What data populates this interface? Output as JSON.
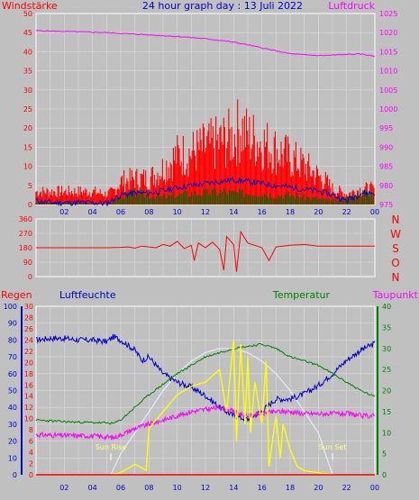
{
  "colors": {
    "background": "#c0c0c0",
    "plot_bg": "#c0c0c0",
    "grid": "#dcdcdc",
    "title": "#0000cc",
    "wind": "#ff0000",
    "gust_dark": "#006400",
    "blue": "#0000cc",
    "pressure": "#ff00ff",
    "direction": "#ff0000",
    "temperature": "#008000",
    "humidity": "#0000cc",
    "dewpoint": "#ff00ff",
    "radiation": "#ffff00",
    "solar_max": "#e8e8ff",
    "rain": "#ff0000",
    "sun_markers": "#ffff80"
  },
  "chart_data": [
    {
      "type": "line",
      "title": "24 hour graph day : 13 Juli 2022",
      "ylabel_left": "Windstärke",
      "ylabel_right": "Luftdruck",
      "xticks": [
        "02",
        "04",
        "06",
        "08",
        "10",
        "12",
        "14",
        "16",
        "18",
        "20",
        "22",
        "00"
      ],
      "left_ticks": [
        0,
        5,
        10,
        15,
        20,
        25,
        30,
        35,
        40,
        45,
        50
      ],
      "right_ticks": [
        975,
        980,
        985,
        990,
        995,
        1000,
        1005,
        1010,
        1015,
        1020,
        1025
      ],
      "ylim_left": [
        0,
        50
      ],
      "ylim_right": [
        975,
        1025
      ],
      "series": {
        "pressure": {
          "x": [
            0,
            1,
            2,
            3,
            4,
            5,
            6,
            7,
            8,
            9,
            10,
            11,
            12,
            13,
            14,
            15,
            16,
            17,
            18,
            19,
            20,
            21,
            22,
            23,
            24
          ],
          "values": [
            1020.5,
            1020.4,
            1020.3,
            1020.2,
            1020.1,
            1020.0,
            1019.8,
            1019.6,
            1019.4,
            1019.2,
            1019.0,
            1018.7,
            1018.4,
            1018.0,
            1017.5,
            1016.8,
            1016.0,
            1015.2,
            1014.5,
            1014.2,
            1014.0,
            1014.1,
            1014.3,
            1014.4,
            1013.8
          ]
        },
        "wind_gust_envelope": {
          "x": [
            0,
            1,
            2,
            3,
            4,
            5,
            5.5,
            6,
            7,
            8,
            9,
            10,
            11,
            12,
            13,
            14,
            14.5,
            15,
            16,
            17,
            18,
            19,
            20,
            20.5,
            21,
            22,
            22.5,
            23,
            24
          ],
          "values": [
            5,
            5,
            5,
            5,
            5,
            4,
            5,
            9,
            10,
            10,
            14,
            19,
            20,
            22,
            24,
            26,
            30,
            26,
            24,
            21,
            18,
            15,
            11,
            9,
            6,
            4,
            5,
            6,
            6
          ]
        },
        "wind_avg": {
          "x": [
            0,
            1,
            2,
            3,
            4,
            5,
            6,
            7,
            8,
            9,
            10,
            11,
            12,
            13,
            14,
            15,
            16,
            17,
            18,
            19,
            20,
            21,
            22,
            23,
            24
          ],
          "values": [
            1,
            0.5,
            0.5,
            0.5,
            0.5,
            0.3,
            2.5,
            3,
            3,
            3.5,
            4.5,
            5,
            5.5,
            6,
            6.5,
            6,
            5.5,
            5,
            4.5,
            4,
            3.5,
            2.5,
            1,
            3,
            3
          ]
        },
        "wind_dark": {
          "x": [
            0,
            1,
            2,
            3,
            4,
            5,
            6,
            7,
            8,
            9,
            10,
            11,
            12,
            13,
            14,
            15,
            16,
            17,
            18,
            19,
            20,
            21,
            22,
            23,
            24
          ],
          "values": [
            0.5,
            0.5,
            0.5,
            0.5,
            0.5,
            0,
            2,
            3,
            2.5,
            2,
            2.5,
            3,
            3,
            3.5,
            3,
            3,
            3,
            2.5,
            2.5,
            2,
            1.5,
            1,
            1.5,
            3,
            3
          ]
        }
      }
    },
    {
      "type": "line",
      "title": "",
      "ylabel_right": [
        "N",
        "W",
        "S",
        "O",
        "N"
      ],
      "left_ticks": [
        0,
        90,
        180,
        270,
        360
      ],
      "ylim": [
        0,
        360
      ],
      "series": {
        "direction": {
          "x": [
            0,
            1,
            2,
            3,
            4,
            5,
            6,
            6.5,
            7,
            7.5,
            8,
            8.5,
            9,
            9.5,
            10,
            10.5,
            11,
            11.2,
            11.5,
            12,
            12.5,
            13,
            13.3,
            13.5,
            14,
            14.2,
            14.5,
            15,
            15.5,
            16,
            16.5,
            17,
            18,
            19,
            20,
            21,
            22,
            23,
            24
          ],
          "values": [
            180,
            180,
            180,
            180,
            180,
            180,
            182,
            185,
            178,
            190,
            185,
            180,
            200,
            190,
            220,
            175,
            195,
            100,
            210,
            180,
            215,
            170,
            40,
            250,
            200,
            30,
            280,
            210,
            195,
            180,
            100,
            185,
            195,
            200,
            190,
            190,
            190,
            190,
            190
          ]
        }
      }
    },
    {
      "type": "line",
      "title": "",
      "label_rain": "Regen",
      "label_humidity": "Luftfeuchte",
      "label_temperature": "Temperatur",
      "label_dewpoint": "Taupunkt",
      "rain_ticks": [
        0,
        2,
        4,
        6,
        8,
        10,
        12,
        14,
        16,
        18,
        20,
        22,
        24,
        26,
        28,
        30
      ],
      "humidity_ticks": [
        0,
        10,
        20,
        30,
        40,
        50,
        60,
        70,
        80,
        90,
        100
      ],
      "temp_ticks": [
        0,
        5,
        10,
        15,
        20,
        25,
        30,
        35,
        40
      ],
      "ylim_humidity": [
        0,
        100
      ],
      "ylim_temp": [
        0,
        40
      ],
      "ylim_rain": [
        0,
        30
      ],
      "sun_rise_label": "Sun Rise",
      "sun_set_label": "Sun Set",
      "sun_rise_hour": 5.3,
      "sun_set_hour": 21.0,
      "series": {
        "humidity": {
          "x": [
            0,
            1,
            2,
            3,
            4,
            5,
            5.5,
            6,
            7,
            7.5,
            8,
            9,
            10,
            11,
            12,
            13,
            14,
            15,
            16,
            17,
            18,
            19,
            20,
            21,
            22,
            23,
            24
          ],
          "values": [
            80,
            81,
            81,
            80,
            80,
            79,
            82,
            80,
            74,
            68,
            70,
            60,
            55,
            52,
            47,
            40,
            35,
            33,
            38,
            45,
            45,
            48,
            53,
            60,
            68,
            74,
            78
          ]
        },
        "temperature": {
          "x": [
            0,
            1,
            2,
            3,
            4,
            5,
            5.5,
            6,
            7,
            8,
            9,
            10,
            11,
            12,
            13,
            14,
            15,
            16,
            17,
            18,
            19,
            20,
            21,
            22,
            23,
            24
          ],
          "values": [
            13,
            12.8,
            12.6,
            12.5,
            12.4,
            12.3,
            12.2,
            13,
            16,
            19,
            21.5,
            24,
            26,
            28,
            29,
            30,
            30.5,
            31,
            30,
            28,
            27,
            26,
            24,
            22,
            20,
            18.5
          ]
        },
        "dewpoint": {
          "x": [
            0,
            1,
            2,
            3,
            4,
            5,
            5.5,
            6,
            7,
            8,
            9,
            10,
            11,
            12,
            13,
            14,
            15,
            16,
            17,
            18,
            19,
            20,
            21,
            22,
            23,
            24
          ],
          "values": [
            9.5,
            9.4,
            9.3,
            9.3,
            9.2,
            9.0,
            8.8,
            9.5,
            11,
            12,
            13,
            14,
            15,
            15.5,
            16,
            15,
            14,
            14.5,
            15,
            15,
            14.5,
            14.5,
            14.5,
            14.5,
            14,
            14
          ]
        },
        "solar_max": {
          "x": [
            5.3,
            6,
            7,
            8,
            9,
            10,
            11,
            12,
            13,
            14,
            15,
            16,
            17,
            18,
            19,
            20,
            21
          ],
          "values": [
            0,
            5,
            10,
            15,
            20,
            24,
            27,
            29,
            30,
            30,
            29,
            27,
            24,
            20,
            15,
            10,
            0
          ]
        },
        "radiation": {
          "x": [
            5.3,
            6,
            6.5,
            7,
            7.3,
            7.8,
            8,
            8.5,
            9,
            10,
            11,
            12,
            13,
            13.5,
            14,
            14.2,
            14.5,
            14.8,
            15,
            15.2,
            15.5,
            16,
            16.3,
            16.5,
            17,
            17.3,
            17.5,
            18,
            18.5,
            19,
            20,
            21
          ],
          "values": [
            0,
            0.5,
            1.5,
            2.5,
            2,
            1,
            11,
            13,
            15,
            19,
            21,
            22,
            25,
            15,
            32,
            8,
            31,
            12,
            28,
            10,
            22,
            12,
            27,
            2,
            14,
            4,
            12,
            6,
            2,
            1,
            0.5,
            0
          ]
        },
        "rain": {
          "x": [
            0,
            24
          ],
          "values": [
            0,
            0
          ]
        }
      }
    }
  ]
}
